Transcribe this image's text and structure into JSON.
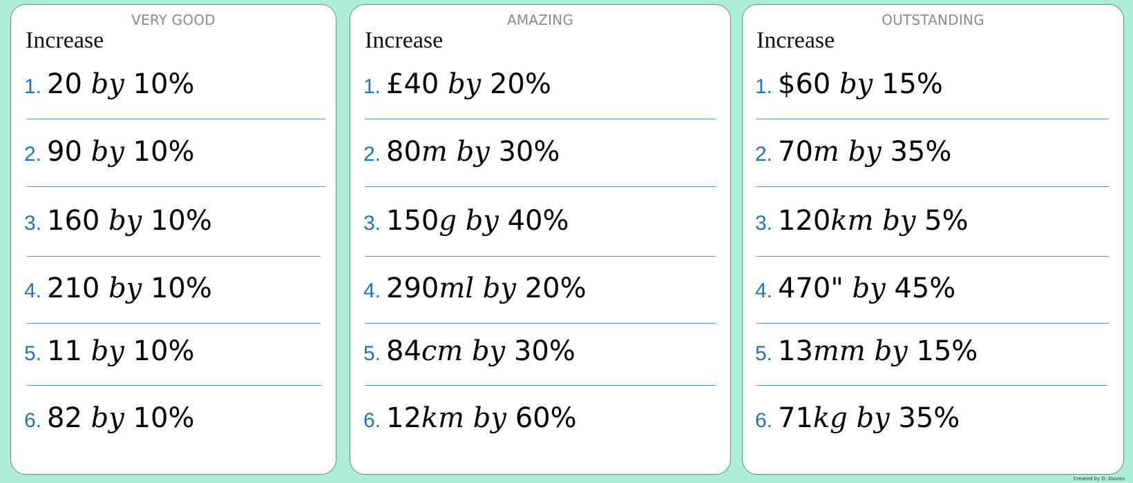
{
  "cards": [
    {
      "title": "VERY GOOD",
      "heading": "Increase",
      "questions": [
        {
          "num": "1.",
          "value": "20 ",
          "unit": "",
          "by": "by",
          "percent": " 10%"
        },
        {
          "num": "2.",
          "value": "90 ",
          "unit": "",
          "by": "by",
          "percent": " 10%"
        },
        {
          "num": "3.",
          "value": "160 ",
          "unit": "",
          "by": "by",
          "percent": " 10%"
        },
        {
          "num": "4.",
          "value": "210 ",
          "unit": "",
          "by": "by",
          "percent": " 10%"
        },
        {
          "num": "5.",
          "value": "11 ",
          "unit": "",
          "by": "by",
          "percent": " 10%"
        },
        {
          "num": "6.",
          "value": "82 ",
          "unit": "",
          "by": "by",
          "percent": " 10%"
        }
      ]
    },
    {
      "title": "AMAZING",
      "heading": "Increase",
      "questions": [
        {
          "num": "1.",
          "value": "£40 ",
          "unit": "",
          "by": "by",
          "percent": " 20%"
        },
        {
          "num": "2.",
          "value": "80",
          "unit": "m ",
          "by": "by",
          "percent": " 30%"
        },
        {
          "num": "3.",
          "value": "150",
          "unit": "g ",
          "by": "by",
          "percent": " 40%"
        },
        {
          "num": "4.",
          "value": "290",
          "unit": "ml ",
          "by": "by",
          "percent": " 20%"
        },
        {
          "num": "5.",
          "value": "84",
          "unit": "cm ",
          "by": "by",
          "percent": " 30%"
        },
        {
          "num": "6.",
          "value": "12",
          "unit": "km ",
          "by": "by",
          "percent": " 60%"
        }
      ]
    },
    {
      "title": "OUTSTANDING",
      "heading": "Increase",
      "questions": [
        {
          "num": "1.",
          "value": "$60 ",
          "unit": "",
          "by": "by",
          "percent": " 15%"
        },
        {
          "num": "2.",
          "value": "70",
          "unit": "m ",
          "by": "by",
          "percent": " 35%"
        },
        {
          "num": "3.",
          "value": "120",
          "unit": "km ",
          "by": "by",
          "percent": " 5%"
        },
        {
          "num": "4.",
          "value": "470\" ",
          "unit": "",
          "by": "by",
          "percent": " 45%"
        },
        {
          "num": "5.",
          "value": "13",
          "unit": "mm ",
          "by": "by",
          "percent": " 15%"
        },
        {
          "num": "6.",
          "value": "71",
          "unit": "kg ",
          "by": "by",
          "percent": " 35%"
        }
      ]
    }
  ],
  "credit": "Created by D. Davies"
}
